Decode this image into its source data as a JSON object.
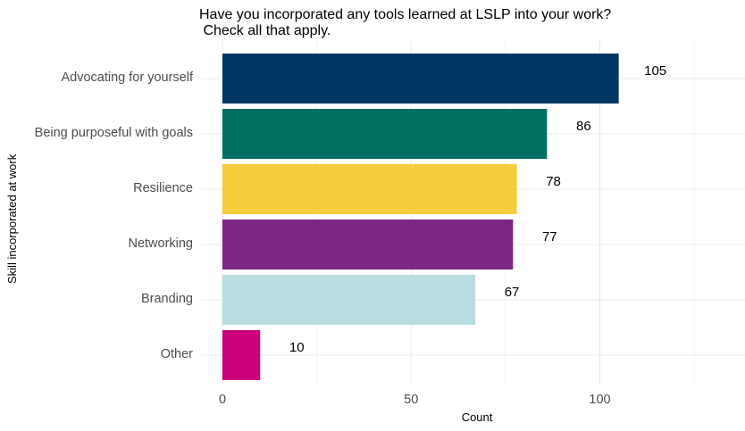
{
  "chart_data": {
    "type": "bar",
    "orientation": "horizontal",
    "title": "Have you incorporated any tools learned at LSLP into your work?\n Check all that apply.",
    "xlabel": "Count",
    "ylabel": "Skill incorporated at work",
    "categories": [
      "Advocating for yourself",
      "Being purposeful with goals",
      "Resilience",
      "Networking",
      "Branding",
      "Other"
    ],
    "values": [
      105,
      86,
      78,
      77,
      67,
      10
    ],
    "colors": [
      "#003764",
      "#006F62",
      "#F6CD3C",
      "#7B2680",
      "#B8DDE1",
      "#CC007A"
    ],
    "xticks": [
      0,
      50,
      100
    ],
    "xlim": [
      0,
      135
    ],
    "grid": true,
    "legend": "none",
    "data_labels": true
  }
}
